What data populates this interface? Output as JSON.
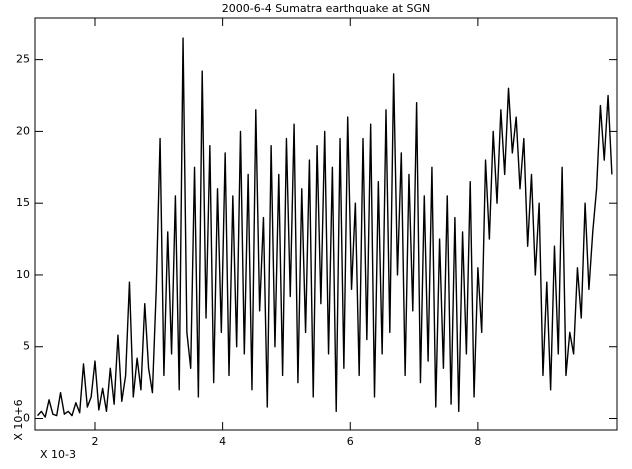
{
  "chart_data": {
    "type": "line",
    "title": "2000-6-4 Sumatra earthquake at SGN",
    "x_label": "X 10-3",
    "y_label": "X 10+6",
    "color": "#000000",
    "x": [
      1.1,
      1.16,
      1.22,
      1.28,
      1.34,
      1.4,
      1.46,
      1.52,
      1.58,
      1.64,
      1.7,
      1.76,
      1.82,
      1.88,
      1.94,
      2.0,
      2.06,
      2.12,
      2.18,
      2.24,
      2.3,
      2.36,
      2.42,
      2.48,
      2.54,
      2.6,
      2.66,
      2.72,
      2.78,
      2.84,
      2.9,
      2.96,
      3.02,
      3.08,
      3.14,
      3.2,
      3.26,
      3.32,
      3.38,
      3.44,
      3.5,
      3.56,
      3.62,
      3.68,
      3.74,
      3.8,
      3.86,
      3.92,
      3.98,
      4.04,
      4.1,
      4.16,
      4.22,
      4.28,
      4.34,
      4.4,
      4.46,
      4.52,
      4.58,
      4.64,
      4.7,
      4.76,
      4.82,
      4.88,
      4.94,
      5.0,
      5.06,
      5.12,
      5.18,
      5.24,
      5.3,
      5.36,
      5.42,
      5.48,
      5.54,
      5.6,
      5.66,
      5.72,
      5.78,
      5.84,
      5.9,
      5.96,
      6.02,
      6.08,
      6.14,
      6.2,
      6.26,
      6.32,
      6.38,
      6.44,
      6.5,
      6.56,
      6.62,
      6.68,
      6.74,
      6.8,
      6.86,
      6.92,
      6.98,
      7.04,
      7.1,
      7.16,
      7.22,
      7.28,
      7.34,
      7.4,
      7.46,
      7.52,
      7.58,
      7.64,
      7.7,
      7.76,
      7.82,
      7.88,
      7.94,
      8.0,
      8.06,
      8.12,
      8.18,
      8.24,
      8.3,
      8.36,
      8.42,
      8.48,
      8.54,
      8.6,
      8.66,
      8.72,
      8.78,
      8.84,
      8.9,
      8.96,
      9.02,
      9.08,
      9.14,
      9.2,
      9.26,
      9.32,
      9.38,
      9.44,
      9.5,
      9.56,
      9.62,
      9.68,
      9.74,
      9.8,
      9.86,
      9.92,
      9.98,
      10.04,
      10.1
    ],
    "values": [
      0.2,
      0.5,
      0.1,
      1.3,
      0.3,
      0.2,
      1.8,
      0.3,
      0.5,
      0.2,
      1.1,
      0.4,
      3.8,
      0.8,
      1.5,
      4.0,
      0.6,
      2.1,
      0.5,
      3.5,
      1.0,
      5.8,
      1.2,
      3.0,
      9.5,
      1.5,
      4.2,
      2.0,
      8.0,
      3.5,
      1.8,
      9.0,
      19.5,
      3.0,
      13.0,
      4.5,
      15.5,
      2.0,
      26.5,
      6.0,
      3.5,
      17.5,
      1.5,
      24.2,
      7.0,
      19.0,
      2.5,
      16.0,
      6.0,
      18.5,
      3.0,
      15.5,
      5.0,
      20.0,
      4.5,
      17.0,
      2.0,
      21.5,
      7.5,
      14.0,
      0.8,
      19.0,
      5.0,
      17.0,
      3.0,
      19.5,
      8.5,
      20.5,
      2.5,
      16.0,
      6.0,
      18.0,
      1.5,
      19.0,
      8.0,
      20.0,
      4.5,
      17.5,
      0.5,
      19.5,
      3.5,
      21.0,
      9.0,
      15.0,
      3.0,
      19.5,
      5.5,
      20.5,
      1.5,
      16.5,
      4.5,
      21.5,
      6.0,
      24.0,
      10.0,
      18.5,
      3.0,
      17.0,
      7.5,
      22.0,
      2.5,
      15.5,
      4.0,
      17.5,
      0.8,
      12.5,
      3.5,
      15.5,
      1.0,
      14.0,
      0.5,
      13.0,
      4.5,
      16.5,
      1.5,
      10.5,
      6.0,
      18.0,
      12.5,
      20.0,
      15.0,
      21.5,
      17.0,
      23.0,
      18.5,
      21.0,
      16.0,
      19.5,
      12.0,
      17.0,
      10.0,
      15.0,
      3.0,
      9.5,
      2.0,
      12.0,
      4.5,
      17.5,
      3.0,
      6.0,
      4.5,
      10.5,
      7.0,
      15.0,
      9.0,
      13.0,
      16.0,
      21.8,
      18.0,
      22.5,
      17.0
    ],
    "xlim": [
      1.06,
      10.18
    ],
    "ylim": [
      -0.8,
      27.9
    ],
    "xticks": [
      2,
      4,
      6,
      8
    ],
    "yticks": [
      0,
      5,
      10,
      15,
      20,
      25
    ]
  }
}
